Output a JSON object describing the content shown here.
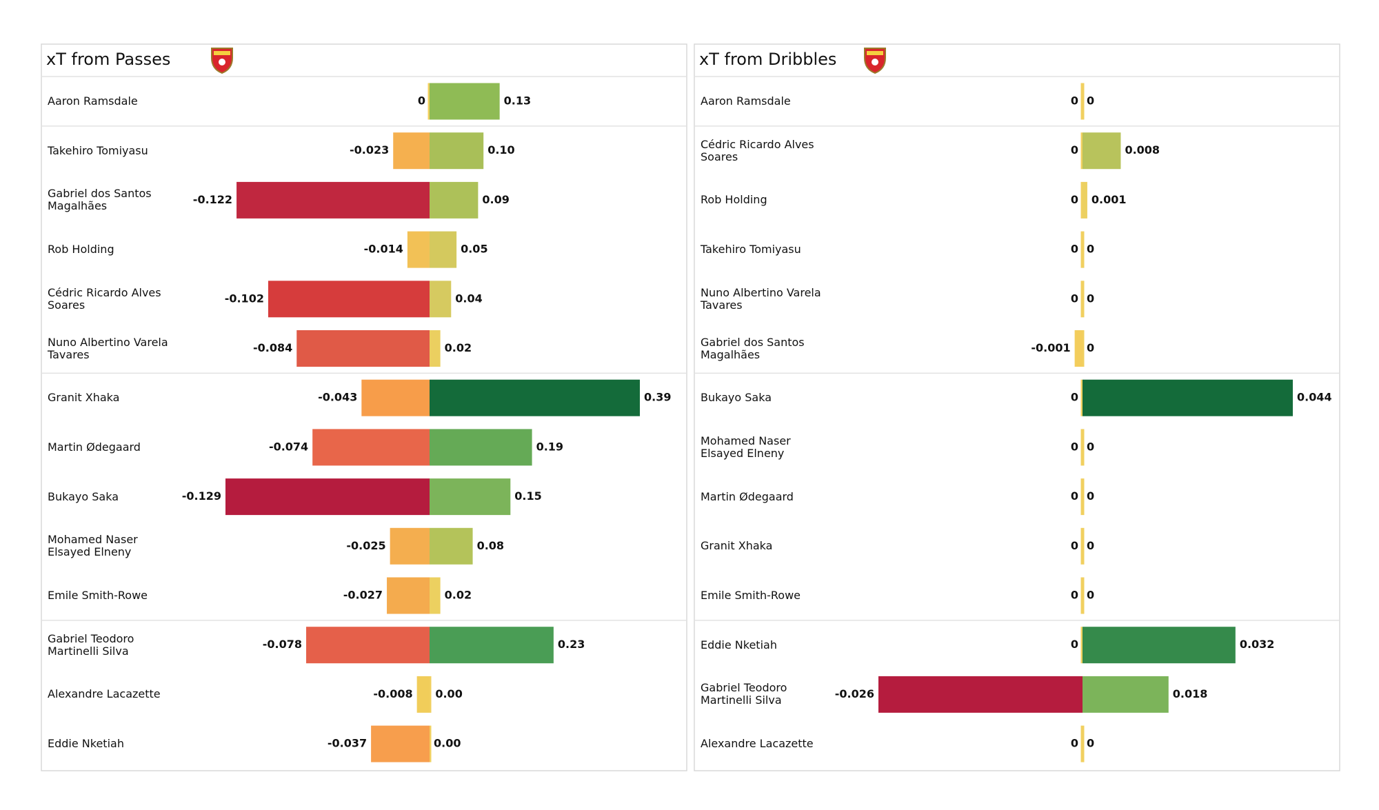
{
  "chart_data": [
    {
      "type": "diverging-bar",
      "title": "xT from Passes",
      "categories": [
        "Aaron Ramsdale",
        "Takehiro Tomiyasu",
        "Gabriel dos Santos Magalhães",
        "Rob Holding",
        "Cédric Ricardo Alves Soares",
        "Nuno Albertino Varela Tavares",
        "Granit Xhaka",
        "Martin Ødegaard",
        "Bukayo Saka",
        "Mohamed Naser Elsayed Elneny",
        "Emile Smith-Rowe",
        "Gabriel Teodoro Martinelli Silva",
        "Alexandre Lacazette",
        "Eddie Nketiah"
      ],
      "series": [
        {
          "values": [
            0,
            -0.023,
            -0.122,
            -0.014,
            -0.102,
            -0.084,
            -0.043,
            -0.074,
            -0.129,
            -0.025,
            -0.027,
            -0.078,
            -0.008,
            -0.037
          ],
          "colors": [
            "#f1d060",
            "#f5b04f",
            "#c0273f",
            "#f2c156",
            "#d63c3c",
            "#e05a47",
            "#f79d4a",
            "#e8664a",
            "#b51c3e",
            "#f4ae4f",
            "#f4ab4e",
            "#e5604a",
            "#f1cd5a",
            "#f79e4d"
          ]
        },
        {
          "values": [
            0.13,
            0.1,
            0.09,
            0.05,
            0.04,
            0.02,
            0.39,
            0.19,
            0.15,
            0.08,
            0.02,
            0.23,
            0.003,
            0
          ],
          "value_labels": [
            "0.13",
            "0.10",
            "0.09",
            "0.05",
            "0.04",
            "0.02",
            "0.39",
            "0.19",
            "0.15",
            "0.08",
            "0.02",
            "0.23",
            "0.00",
            "0.00"
          ],
          "colors": [
            "#8fbb55",
            "#a9bf58",
            "#adc159",
            "#d4c95e",
            "#d6ca60",
            "#ebcf60",
            "#146b3a",
            "#65aa56",
            "#7cb45a",
            "#b4c35a",
            "#ecd060",
            "#4a9d55",
            "#f1d060",
            "#f1d060"
          ]
        }
      ]
    },
    {
      "type": "diverging-bar",
      "title": "xT from Dribbles",
      "categories": [
        "Aaron Ramsdale",
        "Cédric Ricardo Alves Soares",
        "Rob Holding",
        "Takehiro Tomiyasu",
        "Nuno Albertino Varela Tavares",
        "Gabriel dos Santos Magalhães",
        "Bukayo Saka",
        "Mohamed Naser Elsayed Elneny",
        "Martin Ødegaard",
        "Granit Xhaka",
        "Emile Smith-Rowe",
        "Eddie Nketiah",
        "Gabriel Teodoro Martinelli Silva",
        "Alexandre Lacazette"
      ],
      "series": [
        {
          "values": [
            0,
            0,
            0,
            0,
            0,
            -0.001,
            0,
            0,
            0,
            0,
            0,
            0,
            -0.026,
            0
          ],
          "colors": [
            "#f1d060",
            "#f1d060",
            "#f1d060",
            "#f1d060",
            "#f1d060",
            "#f3cd5c",
            "#f1d060",
            "#f1d060",
            "#f1d060",
            "#f1d060",
            "#f1d060",
            "#f1d060",
            "#b51c3e",
            "#f1d060"
          ]
        },
        {
          "values": [
            0,
            0.008,
            0.001,
            0,
            0,
            0,
            0.044,
            0,
            0,
            0,
            0,
            0.032,
            0.018,
            0
          ],
          "colors": [
            "#f1d060",
            "#b8c35c",
            "#ecd060",
            "#f1d060",
            "#f1d060",
            "#f1d060",
            "#146b3a",
            "#f1d060",
            "#f1d060",
            "#f1d060",
            "#f1d060",
            "#358a4b",
            "#7cb45a",
            "#f1d060"
          ]
        }
      ]
    }
  ]
}
